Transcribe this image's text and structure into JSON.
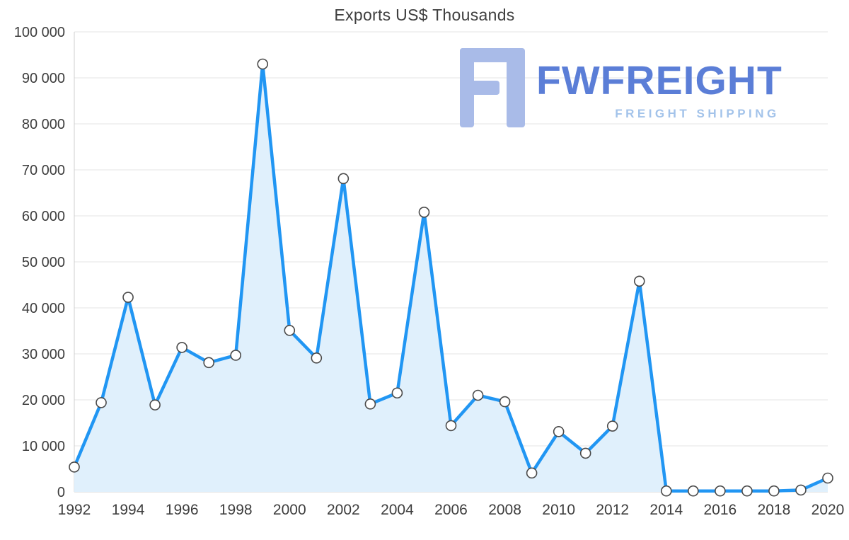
{
  "chart_data": {
    "type": "area",
    "title": "Exports US$ Thousands",
    "xlabel": "",
    "ylabel": "",
    "x": [
      1992,
      1993,
      1994,
      1995,
      1996,
      1997,
      1998,
      1999,
      2000,
      2001,
      2002,
      2003,
      2004,
      2005,
      2006,
      2007,
      2008,
      2009,
      2010,
      2011,
      2012,
      2013,
      2014,
      2015,
      2016,
      2017,
      2018,
      2019,
      2020
    ],
    "values": [
      5400,
      19400,
      42300,
      18900,
      31400,
      28100,
      29700,
      93000,
      35100,
      29100,
      68100,
      19100,
      21500,
      60800,
      14400,
      21000,
      19600,
      4100,
      13100,
      8400,
      14300,
      45800,
      200,
      200,
      200,
      200,
      200,
      400,
      3000
    ],
    "ylim": [
      0,
      100000
    ],
    "y_ticks": [
      0,
      10000,
      20000,
      30000,
      40000,
      50000,
      60000,
      70000,
      80000,
      90000,
      100000
    ],
    "y_tick_labels": [
      "0",
      "10 000",
      "20 000",
      "30 000",
      "40 000",
      "50 000",
      "60 000",
      "70 000",
      "80 000",
      "90 000",
      "100 000"
    ],
    "x_tick_labels": [
      "1992",
      "1994",
      "1996",
      "1998",
      "2000",
      "2002",
      "2004",
      "2006",
      "2008",
      "2010",
      "2012",
      "2014",
      "2016",
      "2018",
      "2020"
    ],
    "grid": true,
    "legend": "none",
    "line_color": "#2196f3",
    "fill_color": "#e0f0fc",
    "marker_fill": "#ffffff",
    "marker_stroke": "#4a4a4a",
    "grid_color": "#e4e4e4",
    "axis_color": "#cfcfcf"
  },
  "logo": {
    "name": "FWFREIGHT",
    "tagline": "FREIGHT SHIPPING",
    "name_color": "#5b7ed7",
    "tagline_color": "#a3c3ea",
    "icon_color": "#a9bbe8"
  }
}
